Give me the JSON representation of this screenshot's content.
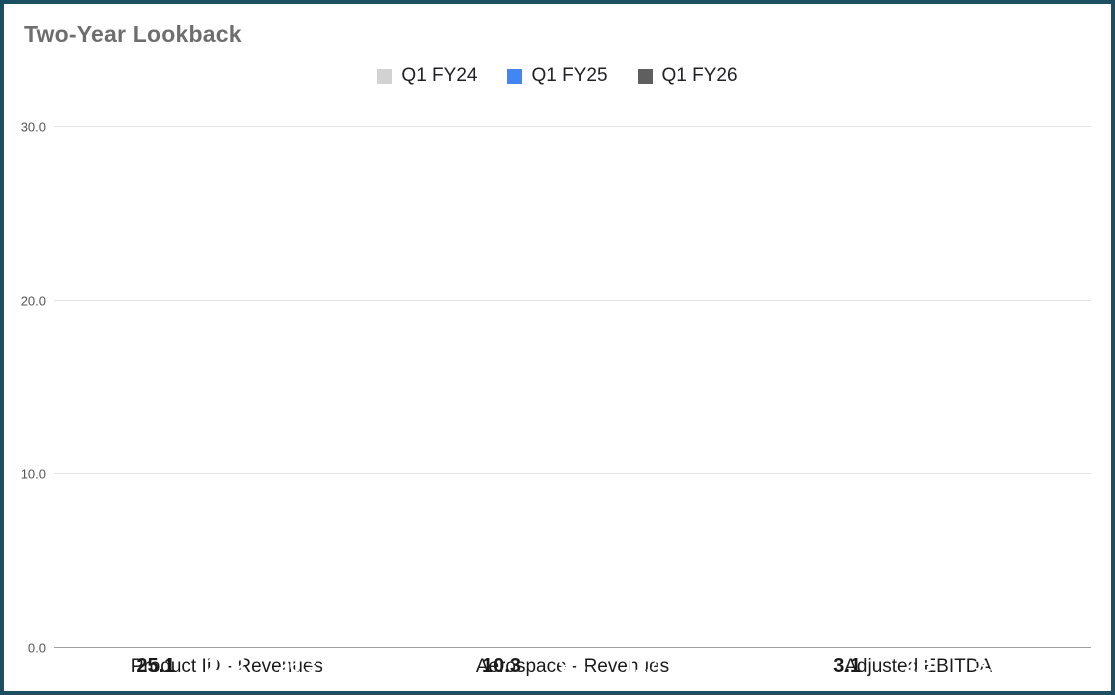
{
  "chart_data": {
    "type": "bar",
    "title": "Two-Year Lookback",
    "categories": [
      "Product ID - Revenues",
      "Aerospace - Revenues",
      "Adjusted EBITDA"
    ],
    "series": [
      {
        "name": "Q1 FY24",
        "color": "#d2d2d2",
        "label_color": "#1a1a1a",
        "values": [
          25.1,
          10.3,
          3.1
        ]
      },
      {
        "name": "Q1 FY25",
        "color": "#4285f4",
        "label_color": "#ffffff",
        "values": [
          23.2,
          9.8,
          2.5
        ]
      },
      {
        "name": "Q1 FY26",
        "color": "#5f5f5f",
        "label_color": "#ffffff",
        "values": [
          26.3,
          11.4,
          3.1
        ]
      }
    ],
    "xlabel": "",
    "ylabel": "",
    "ylim": [
      0,
      30
    ],
    "yticks": [
      0,
      10,
      20,
      30
    ],
    "ytick_labels": [
      "0.0",
      "10.0",
      "20.0",
      "30.0"
    ],
    "grid": true,
    "legend_position": "top"
  },
  "colors": {
    "frame_border": "#1d4f63",
    "title_text": "#6e6e6e",
    "grid_line": "#e3e3e3",
    "axis_line": "#9e9e9e"
  }
}
